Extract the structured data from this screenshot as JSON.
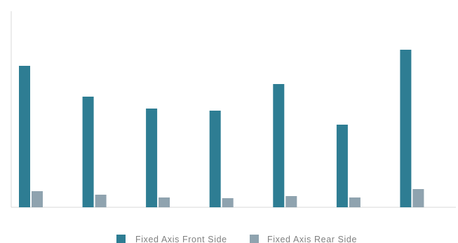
{
  "chart_data": {
    "type": "bar",
    "categories": [
      "",
      "",
      "",
      "",
      "",
      "",
      ""
    ],
    "series": [
      {
        "name": "Fixed Axis Front Side",
        "color": "#2e7d93",
        "values": [
          202,
          158,
          141,
          138,
          176,
          118,
          225
        ]
      },
      {
        "name": "Fixed Axis Rear Side",
        "color": "#8fa3af",
        "values": [
          23,
          18,
          14,
          13,
          16,
          14,
          26
        ]
      }
    ],
    "ylim": [
      0,
      280
    ],
    "grid": false,
    "legend": "bottom",
    "colors": {
      "axis": "#d9d9d9"
    }
  }
}
